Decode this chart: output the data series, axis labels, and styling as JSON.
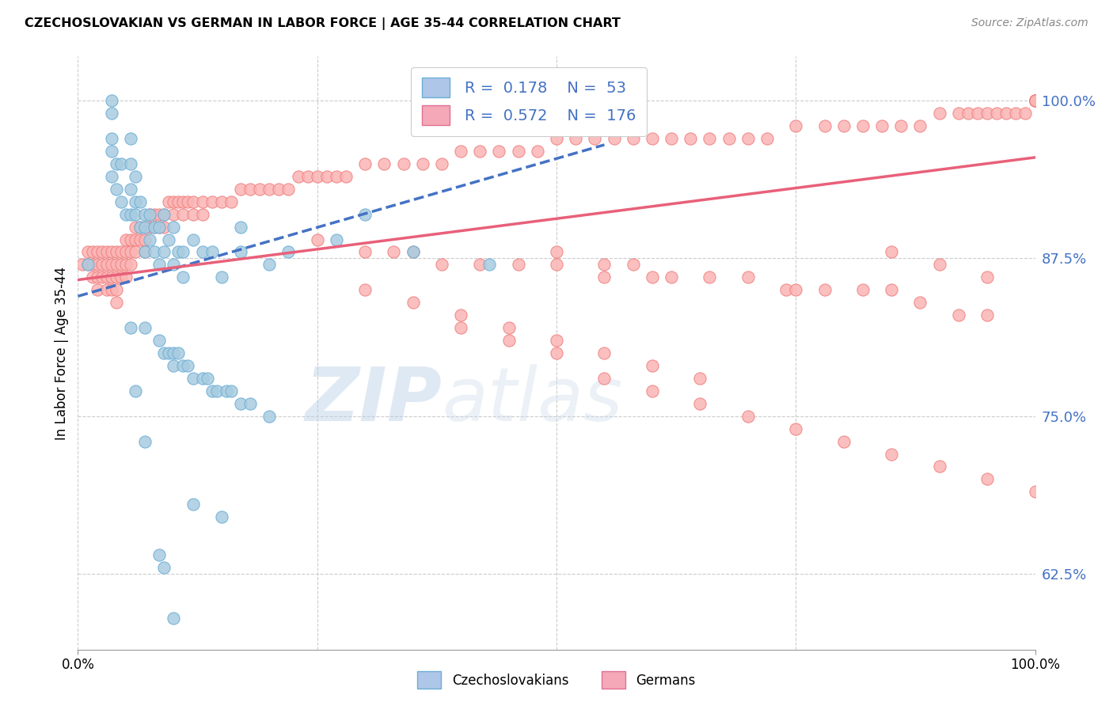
{
  "title": "CZECHOSLOVAKIAN VS GERMAN IN LABOR FORCE | AGE 35-44 CORRELATION CHART",
  "source": "Source: ZipAtlas.com",
  "ylabel": "In Labor Force | Age 35-44",
  "ytick_labels": [
    "62.5%",
    "75.0%",
    "87.5%",
    "100.0%"
  ],
  "ytick_values": [
    0.625,
    0.75,
    0.875,
    1.0
  ],
  "xlim": [
    0.0,
    1.0
  ],
  "ylim": [
    0.565,
    1.035
  ],
  "legend_line1": "R =  0.178   N =  53",
  "legend_line2": "R =  0.572   N =  176",
  "blue_scatter_color": "#a8cce0",
  "blue_scatter_edge": "#6baed6",
  "pink_scatter_color": "#fbb4b4",
  "pink_scatter_edge": "#f08080",
  "blue_line_color": "#4472c4",
  "pink_line_color": "#e8607a",
  "watermark_zip": "ZIP",
  "watermark_atlas": "atlas",
  "blue_patch_face": "#aec6e8",
  "blue_patch_edge": "#6baed6",
  "pink_patch_face": "#f4a8b8",
  "pink_patch_edge": "#e07090",
  "blue_scatter_x": [
    0.01,
    0.035,
    0.035,
    0.035,
    0.035,
    0.035,
    0.04,
    0.04,
    0.045,
    0.045,
    0.05,
    0.055,
    0.055,
    0.055,
    0.055,
    0.06,
    0.06,
    0.06,
    0.065,
    0.065,
    0.07,
    0.07,
    0.07,
    0.075,
    0.075,
    0.08,
    0.08,
    0.085,
    0.085,
    0.09,
    0.09,
    0.095,
    0.1,
    0.1,
    0.105,
    0.11,
    0.11,
    0.12,
    0.13,
    0.14,
    0.15,
    0.17,
    0.17,
    0.2,
    0.22,
    0.27,
    0.3,
    0.35,
    0.43,
    0.06,
    0.07,
    0.12,
    0.15
  ],
  "blue_scatter_y": [
    0.87,
    1.0,
    0.99,
    0.97,
    0.96,
    0.94,
    0.95,
    0.93,
    0.95,
    0.92,
    0.91,
    0.97,
    0.95,
    0.93,
    0.91,
    0.94,
    0.92,
    0.91,
    0.92,
    0.9,
    0.91,
    0.9,
    0.88,
    0.91,
    0.89,
    0.9,
    0.88,
    0.9,
    0.87,
    0.91,
    0.88,
    0.89,
    0.9,
    0.87,
    0.88,
    0.88,
    0.86,
    0.89,
    0.88,
    0.88,
    0.86,
    0.9,
    0.88,
    0.87,
    0.88,
    0.89,
    0.91,
    0.88,
    0.87,
    0.77,
    0.73,
    0.68,
    0.67
  ],
  "blue_scatter_x2": [
    0.055,
    0.07,
    0.085,
    0.09,
    0.095,
    0.1,
    0.1,
    0.105,
    0.11,
    0.115,
    0.12,
    0.13,
    0.135,
    0.14,
    0.145,
    0.155,
    0.16,
    0.17,
    0.18,
    0.2,
    0.085,
    0.09,
    0.1
  ],
  "blue_scatter_y2": [
    0.82,
    0.82,
    0.81,
    0.8,
    0.8,
    0.79,
    0.8,
    0.8,
    0.79,
    0.79,
    0.78,
    0.78,
    0.78,
    0.77,
    0.77,
    0.77,
    0.77,
    0.76,
    0.76,
    0.75,
    0.64,
    0.63,
    0.59
  ],
  "pink_scatter_x": [
    0.005,
    0.01,
    0.01,
    0.015,
    0.015,
    0.015,
    0.02,
    0.02,
    0.02,
    0.02,
    0.025,
    0.025,
    0.025,
    0.03,
    0.03,
    0.03,
    0.03,
    0.035,
    0.035,
    0.035,
    0.035,
    0.04,
    0.04,
    0.04,
    0.04,
    0.04,
    0.045,
    0.045,
    0.045,
    0.05,
    0.05,
    0.05,
    0.05,
    0.055,
    0.055,
    0.055,
    0.06,
    0.06,
    0.06,
    0.065,
    0.065,
    0.07,
    0.07,
    0.07,
    0.075,
    0.075,
    0.08,
    0.08,
    0.085,
    0.085,
    0.09,
    0.09,
    0.095,
    0.1,
    0.1,
    0.105,
    0.11,
    0.11,
    0.115,
    0.12,
    0.12,
    0.13,
    0.13,
    0.14,
    0.15,
    0.16,
    0.17,
    0.18,
    0.19,
    0.2,
    0.21,
    0.22,
    0.23,
    0.24,
    0.25,
    0.26,
    0.27,
    0.28,
    0.3,
    0.32,
    0.34,
    0.36,
    0.38,
    0.4,
    0.42,
    0.44,
    0.46,
    0.48,
    0.5,
    0.52,
    0.54,
    0.56,
    0.58,
    0.6,
    0.62,
    0.64,
    0.66,
    0.68,
    0.7,
    0.72,
    0.75,
    0.78,
    0.8,
    0.82,
    0.84,
    0.86,
    0.88,
    0.9,
    0.92,
    0.93,
    0.94,
    0.95,
    0.96,
    0.97,
    0.98,
    0.99,
    1.0,
    1.0,
    1.0,
    1.0,
    1.0,
    1.0,
    1.0,
    1.0,
    1.0,
    1.0
  ],
  "pink_scatter_y": [
    0.87,
    0.88,
    0.87,
    0.88,
    0.87,
    0.86,
    0.88,
    0.87,
    0.86,
    0.85,
    0.88,
    0.87,
    0.86,
    0.88,
    0.87,
    0.86,
    0.85,
    0.88,
    0.87,
    0.86,
    0.85,
    0.88,
    0.87,
    0.86,
    0.85,
    0.84,
    0.88,
    0.87,
    0.86,
    0.89,
    0.88,
    0.87,
    0.86,
    0.89,
    0.88,
    0.87,
    0.9,
    0.89,
    0.88,
    0.9,
    0.89,
    0.9,
    0.89,
    0.88,
    0.91,
    0.9,
    0.91,
    0.9,
    0.91,
    0.9,
    0.91,
    0.9,
    0.92,
    0.92,
    0.91,
    0.92,
    0.92,
    0.91,
    0.92,
    0.92,
    0.91,
    0.92,
    0.91,
    0.92,
    0.92,
    0.92,
    0.93,
    0.93,
    0.93,
    0.93,
    0.93,
    0.93,
    0.94,
    0.94,
    0.94,
    0.94,
    0.94,
    0.94,
    0.95,
    0.95,
    0.95,
    0.95,
    0.95,
    0.96,
    0.96,
    0.96,
    0.96,
    0.96,
    0.97,
    0.97,
    0.97,
    0.97,
    0.97,
    0.97,
    0.97,
    0.97,
    0.97,
    0.97,
    0.97,
    0.97,
    0.98,
    0.98,
    0.98,
    0.98,
    0.98,
    0.98,
    0.98,
    0.99,
    0.99,
    0.99,
    0.99,
    0.99,
    0.99,
    0.99,
    0.99,
    0.99,
    1.0,
    1.0,
    1.0,
    1.0,
    1.0,
    1.0,
    1.0,
    1.0,
    1.0,
    1.0
  ],
  "pink_scatter_x2": [
    0.25,
    0.3,
    0.33,
    0.35,
    0.38,
    0.42,
    0.46,
    0.5,
    0.55,
    0.55,
    0.6,
    0.5,
    0.58,
    0.62,
    0.66,
    0.7,
    0.74,
    0.75,
    0.78,
    0.82,
    0.85,
    0.88,
    0.92,
    0.95,
    0.85,
    0.9,
    0.95,
    0.4,
    0.45,
    0.5,
    0.55,
    0.6,
    0.65,
    0.7,
    0.75,
    0.8,
    0.85,
    0.9,
    0.95,
    1.0,
    0.3,
    0.35,
    0.4,
    0.45,
    0.5,
    0.55,
    0.6,
    0.65
  ],
  "pink_scatter_y2": [
    0.89,
    0.88,
    0.88,
    0.88,
    0.87,
    0.87,
    0.87,
    0.87,
    0.87,
    0.86,
    0.86,
    0.88,
    0.87,
    0.86,
    0.86,
    0.86,
    0.85,
    0.85,
    0.85,
    0.85,
    0.85,
    0.84,
    0.83,
    0.83,
    0.88,
    0.87,
    0.86,
    0.82,
    0.81,
    0.8,
    0.78,
    0.77,
    0.76,
    0.75,
    0.74,
    0.73,
    0.72,
    0.71,
    0.7,
    0.69,
    0.85,
    0.84,
    0.83,
    0.82,
    0.81,
    0.8,
    0.79,
    0.78
  ],
  "blue_trend_x": [
    0.0,
    0.55
  ],
  "blue_trend_y": [
    0.845,
    0.965
  ],
  "pink_trend_x": [
    0.0,
    1.0
  ],
  "pink_trend_y": [
    0.858,
    0.955
  ]
}
